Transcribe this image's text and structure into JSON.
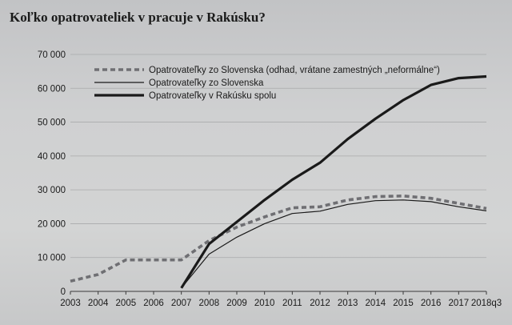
{
  "page": {
    "title": "Koľko opatrovateliek v pracuje v Rakúsku?"
  },
  "chart_data": {
    "type": "line",
    "title": "Koľko opatrovateliek v pracuje v Rakúsku?",
    "xlabel": "",
    "ylabel": "",
    "x": [
      "2003",
      "2004",
      "2005",
      "2006",
      "2007",
      "2008",
      "2009",
      "2010",
      "2011",
      "2012",
      "2013",
      "2014",
      "2015",
      "2016",
      "2017",
      "2018q3"
    ],
    "y_ticks": [
      "0",
      "10 000",
      "20 000",
      "30 000",
      "40 000",
      "50 000",
      "60 000",
      "70 000"
    ],
    "ylim": [
      0,
      70000
    ],
    "grid": "horizontal",
    "legend_position": "top-left",
    "series": [
      {
        "name": "Opatrovateľky zo Slovenska (odhad, vrátane zamestných „neformálne“)",
        "style": "dashed",
        "color": "#6f6f73",
        "values": [
          3000,
          5000,
          9300,
          9300,
          9300,
          15000,
          19000,
          22000,
          24700,
          25000,
          27000,
          28000,
          28200,
          27500,
          26000,
          24500
        ]
      },
      {
        "name": "Opatrovateľky zo Slovenska",
        "style": "thin",
        "color": "#1a1a1a",
        "values": [
          null,
          null,
          null,
          null,
          1000,
          11000,
          16000,
          20000,
          23000,
          23700,
          25700,
          26800,
          27000,
          26500,
          25000,
          23800
        ]
      },
      {
        "name": "Opatrovateľky v Rakúsku spolu",
        "style": "thick",
        "color": "#1a1a1a",
        "values": [
          null,
          null,
          null,
          null,
          1000,
          14000,
          20500,
          27000,
          33000,
          38000,
          45000,
          51000,
          56500,
          61000,
          63000,
          63500
        ]
      }
    ]
  }
}
